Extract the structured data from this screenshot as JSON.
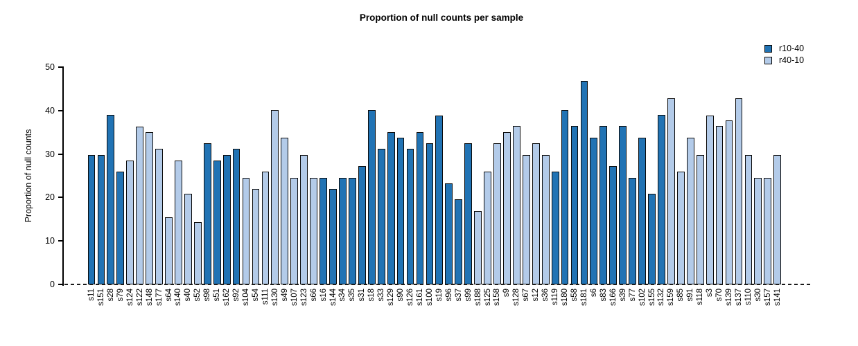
{
  "title": "Proportion of null counts per sample",
  "y_axis": {
    "label": "Proportion of null counts"
  },
  "legend": {
    "items": [
      {
        "label": "r10-40",
        "color": "#2173b4"
      },
      {
        "label": "r40-10",
        "color": "#b3cbe9"
      }
    ]
  },
  "chart_data": {
    "type": "bar",
    "title": "Proportion of null counts per sample",
    "xlabel": "",
    "ylabel": "Proportion of null counts",
    "ylim": [
      0,
      50
    ],
    "yticks": [
      0,
      10,
      20,
      30,
      40,
      50
    ],
    "grid": false,
    "legend_position": "top-right",
    "groups": [
      "r10-40",
      "r40-10"
    ],
    "group_colors": {
      "r10-40": "#2173b4",
      "r40-10": "#b3cbe9"
    },
    "samples": [
      {
        "name": "s11",
        "value": 29.8,
        "group": "r10-40"
      },
      {
        "name": "s151",
        "value": 29.8,
        "group": "r10-40"
      },
      {
        "name": "s28",
        "value": 39.0,
        "group": "r10-40"
      },
      {
        "name": "s79",
        "value": 26.0,
        "group": "r10-40"
      },
      {
        "name": "s124",
        "value": 28.5,
        "group": "r40-10"
      },
      {
        "name": "s122",
        "value": 36.3,
        "group": "r40-10"
      },
      {
        "name": "s148",
        "value": 35.0,
        "group": "r40-10"
      },
      {
        "name": "s177",
        "value": 31.2,
        "group": "r40-10"
      },
      {
        "name": "s64",
        "value": 15.5,
        "group": "r40-10"
      },
      {
        "name": "s140",
        "value": 28.5,
        "group": "r40-10"
      },
      {
        "name": "s40",
        "value": 20.8,
        "group": "r40-10"
      },
      {
        "name": "s52",
        "value": 14.3,
        "group": "r40-10"
      },
      {
        "name": "s98",
        "value": 32.5,
        "group": "r10-40"
      },
      {
        "name": "s51",
        "value": 28.5,
        "group": "r10-40"
      },
      {
        "name": "s162",
        "value": 29.8,
        "group": "r10-40"
      },
      {
        "name": "s92",
        "value": 31.2,
        "group": "r10-40"
      },
      {
        "name": "s104",
        "value": 24.5,
        "group": "r40-10"
      },
      {
        "name": "s54",
        "value": 22.0,
        "group": "r40-10"
      },
      {
        "name": "s111",
        "value": 26.0,
        "group": "r40-10"
      },
      {
        "name": "s130",
        "value": 40.1,
        "group": "r40-10"
      },
      {
        "name": "s49",
        "value": 33.7,
        "group": "r40-10"
      },
      {
        "name": "s107",
        "value": 24.5,
        "group": "r40-10"
      },
      {
        "name": "s123",
        "value": 29.8,
        "group": "r40-10"
      },
      {
        "name": "s66",
        "value": 24.5,
        "group": "r40-10"
      },
      {
        "name": "s16",
        "value": 24.5,
        "group": "r10-40"
      },
      {
        "name": "s144",
        "value": 22.0,
        "group": "r10-40"
      },
      {
        "name": "s34",
        "value": 24.5,
        "group": "r10-40"
      },
      {
        "name": "s35",
        "value": 24.5,
        "group": "r10-40"
      },
      {
        "name": "s31",
        "value": 27.3,
        "group": "r10-40"
      },
      {
        "name": "s18",
        "value": 40.1,
        "group": "r10-40"
      },
      {
        "name": "s33",
        "value": 31.2,
        "group": "r10-40"
      },
      {
        "name": "s129",
        "value": 35.0,
        "group": "r10-40"
      },
      {
        "name": "s90",
        "value": 33.7,
        "group": "r10-40"
      },
      {
        "name": "s126",
        "value": 31.2,
        "group": "r10-40"
      },
      {
        "name": "s161",
        "value": 35.0,
        "group": "r10-40"
      },
      {
        "name": "s100",
        "value": 32.5,
        "group": "r10-40"
      },
      {
        "name": "s19",
        "value": 38.9,
        "group": "r10-40"
      },
      {
        "name": "s96",
        "value": 23.3,
        "group": "r10-40"
      },
      {
        "name": "s37",
        "value": 19.6,
        "group": "r10-40"
      },
      {
        "name": "s99",
        "value": 32.5,
        "group": "r10-40"
      },
      {
        "name": "s188",
        "value": 16.9,
        "group": "r40-10"
      },
      {
        "name": "s125",
        "value": 26.0,
        "group": "r40-10"
      },
      {
        "name": "s158",
        "value": 32.5,
        "group": "r40-10"
      },
      {
        "name": "s9",
        "value": 35.0,
        "group": "r40-10"
      },
      {
        "name": "s128",
        "value": 36.4,
        "group": "r40-10"
      },
      {
        "name": "s67",
        "value": 29.8,
        "group": "r40-10"
      },
      {
        "name": "s12",
        "value": 32.5,
        "group": "r40-10"
      },
      {
        "name": "s36",
        "value": 29.8,
        "group": "r40-10"
      },
      {
        "name": "s119",
        "value": 26.0,
        "group": "r10-40"
      },
      {
        "name": "s180",
        "value": 40.1,
        "group": "r10-40"
      },
      {
        "name": "s58",
        "value": 36.4,
        "group": "r10-40"
      },
      {
        "name": "s181",
        "value": 46.8,
        "group": "r10-40"
      },
      {
        "name": "s6",
        "value": 33.7,
        "group": "r10-40"
      },
      {
        "name": "s83",
        "value": 36.4,
        "group": "r10-40"
      },
      {
        "name": "s166",
        "value": 27.3,
        "group": "r10-40"
      },
      {
        "name": "s39",
        "value": 36.4,
        "group": "r10-40"
      },
      {
        "name": "s77",
        "value": 24.5,
        "group": "r10-40"
      },
      {
        "name": "s102",
        "value": 33.7,
        "group": "r10-40"
      },
      {
        "name": "s155",
        "value": 20.9,
        "group": "r10-40"
      },
      {
        "name": "s132",
        "value": 39.0,
        "group": "r10-40"
      },
      {
        "name": "s159",
        "value": 42.8,
        "group": "r40-10"
      },
      {
        "name": "s85",
        "value": 26.0,
        "group": "r40-10"
      },
      {
        "name": "s91",
        "value": 33.7,
        "group": "r40-10"
      },
      {
        "name": "s118",
        "value": 29.8,
        "group": "r40-10"
      },
      {
        "name": "s3",
        "value": 38.9,
        "group": "r40-10"
      },
      {
        "name": "s70",
        "value": 36.4,
        "group": "r40-10"
      },
      {
        "name": "s139",
        "value": 37.7,
        "group": "r40-10"
      },
      {
        "name": "s137",
        "value": 42.8,
        "group": "r40-10"
      },
      {
        "name": "s110",
        "value": 29.8,
        "group": "r40-10"
      },
      {
        "name": "s30",
        "value": 24.5,
        "group": "r40-10"
      },
      {
        "name": "s157",
        "value": 24.5,
        "group": "r40-10"
      },
      {
        "name": "s141",
        "value": 29.8,
        "group": "r40-10"
      }
    ]
  }
}
